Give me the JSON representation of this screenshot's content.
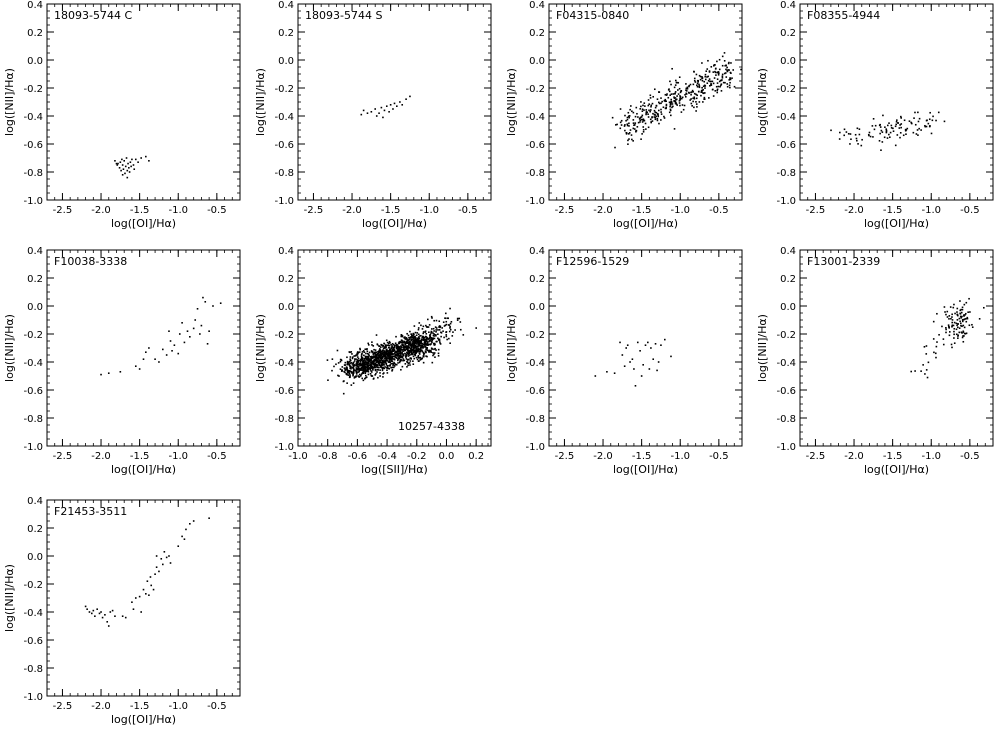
{
  "chart_data": [
    {
      "type": "scatter",
      "title": "18093-5744 C",
      "xlabel": "log([OI]/Hα)",
      "ylabel": "log([NII]/Hα)",
      "xlim": [
        -2.7,
        -0.2
      ],
      "ylim": [
        -1.0,
        0.4
      ],
      "xticks": [
        -2.5,
        -2.0,
        -1.5,
        -1.0,
        -0.5
      ],
      "yticks": [
        -1.0,
        -0.8,
        -0.6,
        -0.4,
        -0.2,
        0.0,
        0.2,
        0.4
      ],
      "points": [
        [
          -1.82,
          -0.72
        ],
        [
          -1.78,
          -0.74
        ],
        [
          -1.75,
          -0.73
        ],
        [
          -1.72,
          -0.75
        ],
        [
          -1.7,
          -0.72
        ],
        [
          -1.68,
          -0.76
        ],
        [
          -1.65,
          -0.74
        ],
        [
          -1.62,
          -0.73
        ],
        [
          -1.6,
          -0.71
        ],
        [
          -1.58,
          -0.75
        ],
        [
          -1.76,
          -0.77
        ],
        [
          -1.74,
          -0.79
        ],
        [
          -1.71,
          -0.78
        ],
        [
          -1.69,
          -0.81
        ],
        [
          -1.66,
          -0.79
        ],
        [
          -1.64,
          -0.77
        ],
        [
          -1.61,
          -0.76
        ],
        [
          -1.79,
          -0.75
        ],
        [
          -1.73,
          -0.71
        ],
        [
          -1.67,
          -0.7
        ],
        [
          -1.55,
          -0.71
        ],
        [
          -1.52,
          -0.73
        ],
        [
          -1.48,
          -0.7
        ],
        [
          -1.42,
          -0.69
        ],
        [
          -1.38,
          -0.72
        ],
        [
          -1.8,
          -0.74
        ],
        [
          -1.72,
          -0.82
        ],
        [
          -1.66,
          -0.84
        ],
        [
          -1.63,
          -0.8
        ],
        [
          -1.57,
          -0.78
        ]
      ]
    },
    {
      "type": "scatter",
      "title": "18093-5744 S",
      "xlabel": "log([OI]/Hα)",
      "ylabel": "log([NII]/Hα)",
      "xlim": [
        -2.7,
        -0.2
      ],
      "ylim": [
        -1.0,
        0.4
      ],
      "xticks": [
        -2.5,
        -2.0,
        -1.5,
        -1.0,
        -0.5
      ],
      "yticks": [
        -1.0,
        -0.8,
        -0.6,
        -0.4,
        -0.2,
        0.0,
        0.2,
        0.4
      ],
      "points": [
        [
          -1.88,
          -0.39
        ],
        [
          -1.85,
          -0.36
        ],
        [
          -1.8,
          -0.38
        ],
        [
          -1.75,
          -0.37
        ],
        [
          -1.7,
          -0.35
        ],
        [
          -1.68,
          -0.4
        ],
        [
          -1.65,
          -0.38
        ],
        [
          -1.62,
          -0.34
        ],
        [
          -1.58,
          -0.36
        ],
        [
          -1.55,
          -0.33
        ],
        [
          -1.52,
          -0.37
        ],
        [
          -1.5,
          -0.32
        ],
        [
          -1.47,
          -0.35
        ],
        [
          -1.45,
          -0.31
        ],
        [
          -1.42,
          -0.33
        ],
        [
          -1.38,
          -0.3
        ],
        [
          -1.35,
          -0.32
        ],
        [
          -1.3,
          -0.28
        ],
        [
          -1.25,
          -0.26
        ],
        [
          -1.6,
          -0.41
        ]
      ]
    },
    {
      "type": "scatter",
      "title": "F04315-0840",
      "xlabel": "log([OI]/Hα)",
      "ylabel": "log([NII]/Hα)",
      "xlim": [
        -2.7,
        -0.2
      ],
      "ylim": [
        -1.0,
        0.4
      ],
      "xticks": [
        -2.5,
        -2.0,
        -1.5,
        -1.0,
        -0.5
      ],
      "yticks": [
        -1.0,
        -0.8,
        -0.6,
        -0.4,
        -0.2,
        0.0,
        0.2,
        0.4
      ],
      "points": []
    },
    {
      "type": "scatter",
      "title": "F08355-4944",
      "xlabel": "log([OI]/Hα)",
      "ylabel": "log([NII]/Hα)",
      "xlim": [
        -2.7,
        -0.2
      ],
      "ylim": [
        -1.0,
        0.4
      ],
      "xticks": [
        -2.5,
        -2.0,
        -1.5,
        -1.0,
        -0.5
      ],
      "yticks": [
        -1.0,
        -0.8,
        -0.6,
        -0.4,
        -0.2,
        0.0,
        0.2,
        0.4
      ],
      "points": []
    },
    {
      "type": "scatter",
      "title": "F10038-3338",
      "xlabel": "log([OI]/Hα)",
      "ylabel": "log([NII]/Hα)",
      "xlim": [
        -2.7,
        -0.2
      ],
      "ylim": [
        -1.0,
        0.4
      ],
      "xticks": [
        -2.5,
        -2.0,
        -1.5,
        -1.0,
        -0.5
      ],
      "yticks": [
        -1.0,
        -0.8,
        -0.6,
        -0.4,
        -0.2,
        0.0,
        0.2,
        0.4
      ],
      "points": [
        [
          -2.0,
          -0.49
        ],
        [
          -1.9,
          -0.48
        ],
        [
          -1.75,
          -0.47
        ],
        [
          -1.55,
          -0.43
        ],
        [
          -1.5,
          -0.45
        ],
        [
          -1.45,
          -0.38
        ],
        [
          -1.42,
          -0.33
        ],
        [
          -1.38,
          -0.3
        ],
        [
          -1.3,
          -0.38
        ],
        [
          -1.25,
          -0.4
        ],
        [
          -1.2,
          -0.31
        ],
        [
          -1.15,
          -0.35
        ],
        [
          -1.12,
          -0.18
        ],
        [
          -1.1,
          -0.25
        ],
        [
          -1.08,
          -0.32
        ],
        [
          -1.05,
          -0.28
        ],
        [
          -1.0,
          -0.34
        ],
        [
          -0.98,
          -0.2
        ],
        [
          -0.95,
          -0.12
        ],
        [
          -0.92,
          -0.26
        ],
        [
          -0.88,
          -0.18
        ],
        [
          -0.85,
          -0.22
        ],
        [
          -0.8,
          -0.16
        ],
        [
          -0.75,
          -0.02
        ],
        [
          -0.72,
          -0.2
        ],
        [
          -0.7,
          -0.14
        ],
        [
          -0.68,
          0.06
        ],
        [
          -0.65,
          0.03
        ],
        [
          -0.62,
          -0.27
        ],
        [
          -0.6,
          -0.18
        ],
        [
          -0.55,
          0.0
        ],
        [
          -0.45,
          0.02
        ],
        [
          -0.78,
          -0.1
        ]
      ]
    },
    {
      "type": "scatter",
      "title": "",
      "annotation": "10257-4338",
      "xlabel": "log([SII]/Hα)",
      "ylabel": "log([NII]/Hα)",
      "xlim": [
        -1.0,
        0.3
      ],
      "ylim": [
        -1.0,
        0.4
      ],
      "xticks": [
        -1.0,
        -0.8,
        -0.6,
        -0.4,
        -0.2,
        0.0,
        0.2
      ],
      "yticks": [
        -1.0,
        -0.8,
        -0.6,
        -0.4,
        -0.2,
        0.0,
        0.2,
        0.4
      ],
      "points": []
    },
    {
      "type": "scatter",
      "title": "F12596-1529",
      "xlabel": "log([OI]/Hα)",
      "ylabel": "log([NII]/Hα)",
      "xlim": [
        -2.7,
        -0.2
      ],
      "ylim": [
        -1.0,
        0.4
      ],
      "xticks": [
        -2.5,
        -2.0,
        -1.5,
        -1.0,
        -0.5
      ],
      "yticks": [
        -1.0,
        -0.8,
        -0.6,
        -0.4,
        -0.2,
        0.0,
        0.2,
        0.4
      ],
      "points": [
        [
          -2.1,
          -0.5
        ],
        [
          -1.95,
          -0.47
        ],
        [
          -1.85,
          -0.48
        ],
        [
          -1.78,
          -0.26
        ],
        [
          -1.75,
          -0.35
        ],
        [
          -1.72,
          -0.43
        ],
        [
          -1.7,
          -0.3
        ],
        [
          -1.68,
          -0.28
        ],
        [
          -1.65,
          -0.4
        ],
        [
          -1.62,
          -0.38
        ],
        [
          -1.6,
          -0.45
        ],
        [
          -1.58,
          -0.57
        ],
        [
          -1.55,
          -0.26
        ],
        [
          -1.52,
          -0.32
        ],
        [
          -1.5,
          -0.5
        ],
        [
          -1.48,
          -0.42
        ],
        [
          -1.45,
          -0.28
        ],
        [
          -1.42,
          -0.26
        ],
        [
          -1.4,
          -0.45
        ],
        [
          -1.38,
          -0.3
        ],
        [
          -1.35,
          -0.38
        ],
        [
          -1.32,
          -0.27
        ],
        [
          -1.3,
          -0.46
        ],
        [
          -1.28,
          -0.4
        ],
        [
          -1.25,
          -0.28
        ],
        [
          -1.2,
          -0.24
        ],
        [
          -1.12,
          -0.36
        ]
      ]
    },
    {
      "type": "scatter",
      "title": "F13001-2339",
      "xlabel": "log([OI]/Hα)",
      "ylabel": "log([NII]/Hα)",
      "xlim": [
        -2.7,
        -0.2
      ],
      "ylim": [
        -1.0,
        0.4
      ],
      "xticks": [
        -2.5,
        -2.0,
        -1.5,
        -1.0,
        -0.5
      ],
      "yticks": [
        -1.0,
        -0.8,
        -0.6,
        -0.4,
        -0.2,
        0.0,
        0.2,
        0.4
      ],
      "points": []
    },
    {
      "type": "scatter",
      "title": "F21453-3511",
      "xlabel": "log([OI]/Hα)",
      "ylabel": "log([NII]/Hα)",
      "xlim": [
        -2.7,
        -0.2
      ],
      "ylim": [
        -1.0,
        0.4
      ],
      "xticks": [
        -2.5,
        -2.0,
        -1.5,
        -1.0,
        -0.5
      ],
      "yticks": [
        -1.0,
        -0.8,
        -0.6,
        -0.4,
        -0.2,
        0.0,
        0.2,
        0.4
      ],
      "points": [
        [
          -2.2,
          -0.36
        ],
        [
          -2.18,
          -0.38
        ],
        [
          -2.15,
          -0.4
        ],
        [
          -2.12,
          -0.41
        ],
        [
          -2.1,
          -0.39
        ],
        [
          -2.08,
          -0.43
        ],
        [
          -2.05,
          -0.38
        ],
        [
          -2.02,
          -0.41
        ],
        [
          -2.0,
          -0.4
        ],
        [
          -1.98,
          -0.44
        ],
        [
          -1.95,
          -0.42
        ],
        [
          -1.92,
          -0.47
        ],
        [
          -1.9,
          -0.5
        ],
        [
          -1.88,
          -0.4
        ],
        [
          -1.85,
          -0.39
        ],
        [
          -1.82,
          -0.43
        ],
        [
          -1.72,
          -0.43
        ],
        [
          -1.68,
          -0.44
        ],
        [
          -1.6,
          -0.33
        ],
        [
          -1.58,
          -0.38
        ],
        [
          -1.55,
          -0.3
        ],
        [
          -1.5,
          -0.29
        ],
        [
          -1.48,
          -0.4
        ],
        [
          -1.45,
          -0.24
        ],
        [
          -1.42,
          -0.27
        ],
        [
          -1.4,
          -0.18
        ],
        [
          -1.38,
          -0.28
        ],
        [
          -1.36,
          -0.15
        ],
        [
          -1.35,
          -0.21
        ],
        [
          -1.32,
          -0.24
        ],
        [
          -1.3,
          -0.13
        ],
        [
          -1.28,
          -0.08
        ],
        [
          -1.25,
          -0.11
        ],
        [
          -1.22,
          -0.02
        ],
        [
          -1.2,
          -0.06
        ],
        [
          -1.18,
          0.03
        ],
        [
          -1.15,
          -0.01
        ],
        [
          -1.12,
          0.0
        ],
        [
          -1.1,
          -0.05
        ],
        [
          -1.28,
          0.0
        ],
        [
          -1.0,
          0.07
        ],
        [
          -0.95,
          0.14
        ],
        [
          -0.92,
          0.12
        ],
        [
          -0.9,
          0.19
        ],
        [
          -0.85,
          0.23
        ],
        [
          -0.8,
          0.25
        ],
        [
          -0.6,
          0.27
        ]
      ]
    }
  ]
}
